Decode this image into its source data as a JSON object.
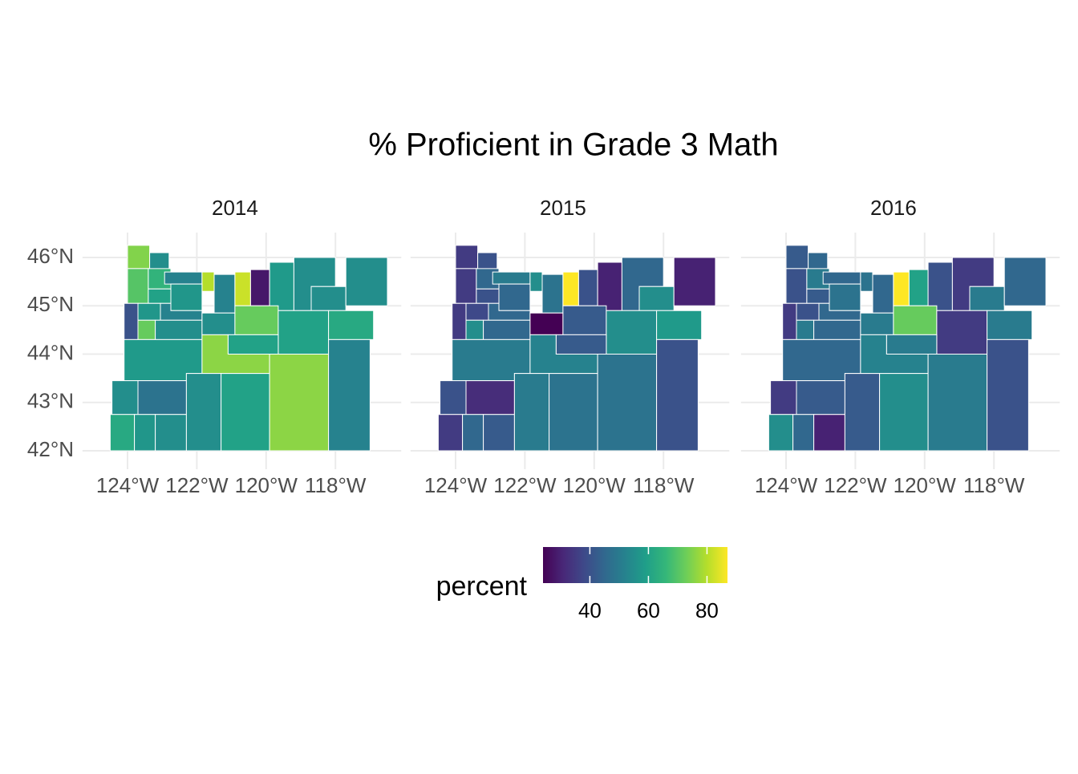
{
  "chart_data": {
    "type": "choropleth",
    "title": "% Proficient in Grade 3 Math",
    "facets": [
      {
        "name": "2014",
        "values": [
          75,
          55,
          70,
          65,
          52,
          80,
          52,
          82,
          28,
          58,
          55,
          55,
          55,
          57,
          60,
          57,
          52,
          40,
          72,
          55,
          55,
          72,
          60,
          62,
          60,
          58,
          76,
          48,
          55,
          62,
          57,
          55,
          55,
          60,
          76,
          52
        ]
      },
      {
        "name": "2015",
        "values": [
          35,
          40,
          35,
          45,
          50,
          55,
          48,
          88,
          40,
          30,
          45,
          55,
          30,
          45,
          40,
          38,
          45,
          35,
          55,
          45,
          22,
          42,
          55,
          58,
          42,
          50,
          52,
          32,
          40,
          35,
          45,
          42,
          50,
          48,
          48,
          40
        ]
      },
      {
        "name": "2016",
        "values": [
          42,
          45,
          40,
          50,
          45,
          48,
          45,
          88,
          60,
          40,
          35,
          50,
          45,
          48,
          42,
          40,
          45,
          35,
          50,
          45,
          50,
          72,
          35,
          50,
          50,
          45,
          52,
          42,
          35,
          55,
          45,
          30,
          42,
          55,
          50,
          40
        ]
      }
    ],
    "xticks": [
      {
        "value": -124,
        "label": "124°W"
      },
      {
        "value": -122,
        "label": "122°W"
      },
      {
        "value": -120,
        "label": "120°W"
      },
      {
        "value": -118,
        "label": "118°W"
      }
    ],
    "yticks": [
      {
        "value": 42,
        "label": "42°N"
      },
      {
        "value": 43,
        "label": "43°N"
      },
      {
        "value": 44,
        "label": "44°N"
      },
      {
        "value": 45,
        "label": "45°N"
      },
      {
        "value": 46,
        "label": "46°N"
      }
    ],
    "grid": true,
    "colorscale": "viridis",
    "colorbar": {
      "title": "percent",
      "lim": [
        24,
        87
      ],
      "ticks": [
        40,
        60,
        80
      ]
    }
  }
}
